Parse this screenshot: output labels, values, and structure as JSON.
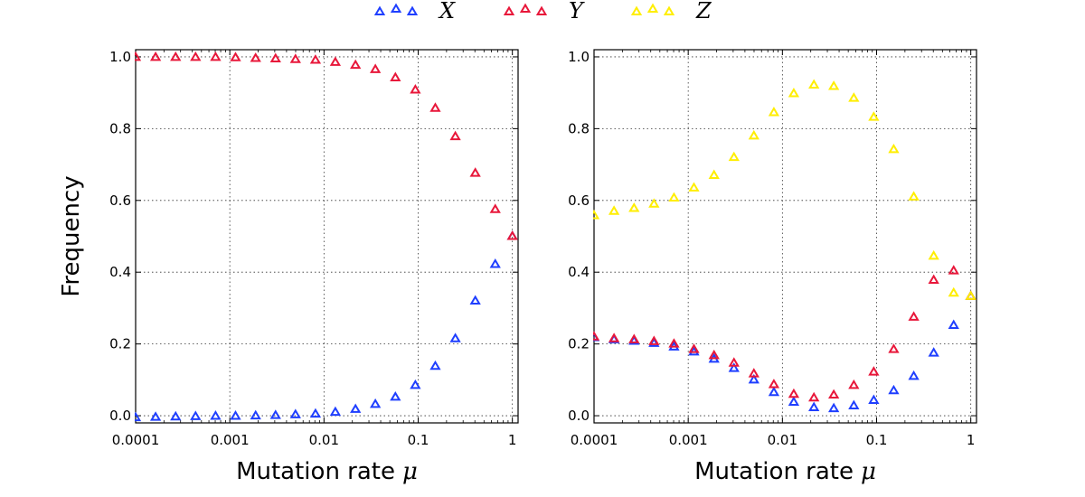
{
  "chart_data": [
    {
      "type": "scatter",
      "xscale": "log",
      "xlim": [
        0.0001,
        1.15
      ],
      "ylim": [
        -0.02,
        1.02
      ],
      "xticks": [
        0.0001,
        0.001,
        0.01,
        0.1,
        1
      ],
      "xtick_labels": [
        "0.0001",
        "0.001",
        "0.01",
        "0.1",
        "1"
      ],
      "yticks": [
        0.0,
        0.2,
        0.4,
        0.6,
        0.8,
        1.0
      ],
      "ytick_labels": [
        "0.0",
        "0.2",
        "0.4",
        "0.6",
        "0.8",
        "1.0"
      ],
      "grid": true,
      "ylabel": "Frequency",
      "xlabel_text": "Mutation rate",
      "xlabel_symbol": "μ",
      "x": [
        0.0001,
        0.000163,
        0.000266,
        0.000433,
        0.000706,
        0.00115,
        0.00188,
        0.00306,
        0.00498,
        0.00812,
        0.0132,
        0.0216,
        0.0351,
        0.0573,
        0.0933,
        0.152,
        0.248,
        0.404,
        0.658,
        1.0
      ],
      "series": [
        {
          "name": "X",
          "color": "#1f3fff",
          "values": [
            -0.005,
            -0.004,
            -0.003,
            -0.002,
            -0.001,
            -0.001,
            0.0,
            0.001,
            0.003,
            0.005,
            0.01,
            0.018,
            0.032,
            0.052,
            0.085,
            0.138,
            0.215,
            0.32,
            0.422,
            0.5
          ]
        },
        {
          "name": "Y",
          "color": "#e8173a",
          "values": [
            0.999,
            0.999,
            0.999,
            0.999,
            0.999,
            0.998,
            0.996,
            0.995,
            0.993,
            0.991,
            0.985,
            0.977,
            0.965,
            0.942,
            0.908,
            0.857,
            0.778,
            0.676,
            0.575,
            0.5
          ]
        }
      ]
    },
    {
      "type": "scatter",
      "xscale": "log",
      "xlim": [
        0.0001,
        1.15
      ],
      "ylim": [
        -0.02,
        1.02
      ],
      "xticks": [
        0.0001,
        0.001,
        0.01,
        0.1,
        1
      ],
      "xtick_labels": [
        "0.0001",
        "0.001",
        "0.01",
        "0.1",
        "1"
      ],
      "yticks": [
        0.0,
        0.2,
        0.4,
        0.6,
        0.8,
        1.0
      ],
      "ytick_labels": [
        "0.0",
        "0.2",
        "0.4",
        "0.6",
        "0.8",
        "1.0"
      ],
      "grid": true,
      "xlabel_text": "Mutation rate",
      "xlabel_symbol": "μ",
      "x": [
        0.0001,
        0.000163,
        0.000266,
        0.000433,
        0.000706,
        0.00115,
        0.00188,
        0.00306,
        0.00498,
        0.00812,
        0.0132,
        0.0216,
        0.0351,
        0.0573,
        0.0933,
        0.152,
        0.248,
        0.404,
        0.658,
        1.0
      ],
      "series": [
        {
          "name": "X",
          "color": "#1f3fff",
          "values": [
            0.218,
            0.212,
            0.208,
            0.202,
            0.192,
            0.178,
            0.158,
            0.132,
            0.1,
            0.065,
            0.038,
            0.023,
            0.02,
            0.028,
            0.043,
            0.07,
            0.11,
            0.175,
            0.252,
            0.333
          ]
        },
        {
          "name": "Y",
          "color": "#e8173a",
          "values": [
            0.22,
            0.215,
            0.212,
            0.207,
            0.2,
            0.185,
            0.168,
            0.147,
            0.117,
            0.087,
            0.06,
            0.05,
            0.058,
            0.085,
            0.122,
            0.185,
            0.275,
            0.378,
            0.404,
            0.333
          ]
        },
        {
          "name": "Z",
          "color": "#ffee00",
          "values": [
            0.558,
            0.57,
            0.578,
            0.59,
            0.607,
            0.635,
            0.67,
            0.72,
            0.78,
            0.845,
            0.898,
            0.922,
            0.918,
            0.885,
            0.832,
            0.742,
            0.61,
            0.445,
            0.342,
            0.333
          ]
        }
      ]
    }
  ],
  "legend": {
    "placement": "top-center",
    "entries": [
      {
        "label": "X",
        "color": "#1f3fff"
      },
      {
        "label": "Y",
        "color": "#e8173a"
      },
      {
        "label": "Z",
        "color": "#ffee00"
      }
    ]
  }
}
